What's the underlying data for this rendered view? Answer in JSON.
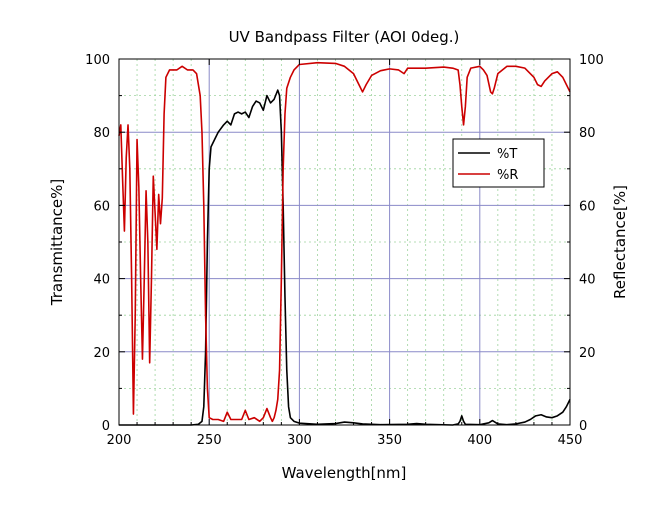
{
  "chart_data": {
    "type": "line",
    "title": "UV Bandpass Filter (AOI 0deg.)",
    "xlabel": "Wavelength[nm]",
    "ylabel_left": "Transmittance%]",
    "ylabel_right": "Reflectance[%]",
    "xlim": [
      200,
      450
    ],
    "ylim": [
      0,
      100
    ],
    "x_ticks": [
      200,
      250,
      300,
      350,
      400,
      450
    ],
    "y_ticks": [
      0,
      20,
      40,
      60,
      80,
      100
    ],
    "grid": true,
    "legend_position": "upper-right",
    "series": [
      {
        "name": "%T",
        "color": "#000000",
        "points": [
          [
            200,
            0
          ],
          [
            240,
            0
          ],
          [
            244,
            0.2
          ],
          [
            246,
            1
          ],
          [
            247,
            5
          ],
          [
            248,
            20
          ],
          [
            249,
            50
          ],
          [
            250,
            70
          ],
          [
            251,
            76
          ],
          [
            253,
            78
          ],
          [
            255,
            80
          ],
          [
            258,
            82
          ],
          [
            260,
            83
          ],
          [
            262,
            82
          ],
          [
            264,
            85
          ],
          [
            266,
            85.5
          ],
          [
            268,
            85
          ],
          [
            270,
            85.5
          ],
          [
            272,
            84
          ],
          [
            274,
            87
          ],
          [
            276,
            88.5
          ],
          [
            278,
            88
          ],
          [
            280,
            86
          ],
          [
            282,
            90
          ],
          [
            284,
            88
          ],
          [
            286,
            89
          ],
          [
            288,
            91.5
          ],
          [
            289,
            90
          ],
          [
            290,
            80
          ],
          [
            291,
            60
          ],
          [
            292,
            35
          ],
          [
            293,
            15
          ],
          [
            294,
            5
          ],
          [
            295,
            2
          ],
          [
            297,
            1
          ],
          [
            300,
            0.5
          ],
          [
            310,
            0.2
          ],
          [
            320,
            0.4
          ],
          [
            325,
            0.8
          ],
          [
            330,
            0.6
          ],
          [
            335,
            0.3
          ],
          [
            345,
            0.1
          ],
          [
            360,
            0.2
          ],
          [
            365,
            0.4
          ],
          [
            370,
            0.2
          ],
          [
            385,
            0
          ],
          [
            388,
            0.3
          ],
          [
            389,
            1
          ],
          [
            390,
            2.5
          ],
          [
            391,
            1
          ],
          [
            392,
            0.2
          ],
          [
            400,
            0.1
          ],
          [
            405,
            0.6
          ],
          [
            407,
            1.2
          ],
          [
            410,
            0.3
          ],
          [
            415,
            0.1
          ],
          [
            420,
            0.3
          ],
          [
            425,
            0.8
          ],
          [
            428,
            1.5
          ],
          [
            431,
            2.5
          ],
          [
            434,
            2.8
          ],
          [
            437,
            2.2
          ],
          [
            440,
            2
          ],
          [
            443,
            2.5
          ],
          [
            446,
            3.5
          ],
          [
            448,
            5
          ],
          [
            450,
            7
          ]
        ]
      },
      {
        "name": "%R",
        "color": "#cc0000",
        "points": [
          [
            200,
            79
          ],
          [
            201,
            82
          ],
          [
            202,
            67
          ],
          [
            203,
            53
          ],
          [
            204,
            73
          ],
          [
            205,
            82
          ],
          [
            206,
            70
          ],
          [
            207,
            40
          ],
          [
            208,
            3
          ],
          [
            209,
            30
          ],
          [
            210,
            78
          ],
          [
            211,
            65
          ],
          [
            212,
            40
          ],
          [
            213,
            18
          ],
          [
            214,
            40
          ],
          [
            215,
            64
          ],
          [
            216,
            50
          ],
          [
            217,
            17
          ],
          [
            218,
            40
          ],
          [
            219,
            68
          ],
          [
            220,
            58
          ],
          [
            221,
            48
          ],
          [
            222,
            63
          ],
          [
            223,
            55
          ],
          [
            224,
            62
          ],
          [
            225,
            85
          ],
          [
            226,
            95
          ],
          [
            228,
            97
          ],
          [
            232,
            97
          ],
          [
            235,
            98
          ],
          [
            238,
            97
          ],
          [
            241,
            97
          ],
          [
            243,
            96
          ],
          [
            245,
            90
          ],
          [
            246,
            80
          ],
          [
            247,
            60
          ],
          [
            248,
            30
          ],
          [
            249,
            10
          ],
          [
            250,
            2
          ],
          [
            252,
            1.5
          ],
          [
            255,
            1.5
          ],
          [
            258,
            1
          ],
          [
            260,
            3.5
          ],
          [
            262,
            1.5
          ],
          [
            265,
            1.5
          ],
          [
            268,
            1.5
          ],
          [
            270,
            4
          ],
          [
            272,
            1.5
          ],
          [
            275,
            2
          ],
          [
            278,
            1
          ],
          [
            280,
            2
          ],
          [
            282,
            4.5
          ],
          [
            284,
            2
          ],
          [
            285,
            1
          ],
          [
            286,
            2
          ],
          [
            287,
            4
          ],
          [
            288,
            7
          ],
          [
            289,
            15
          ],
          [
            290,
            40
          ],
          [
            291,
            70
          ],
          [
            292,
            85
          ],
          [
            293,
            92
          ],
          [
            295,
            95
          ],
          [
            297,
            97
          ],
          [
            300,
            98.5
          ],
          [
            310,
            99
          ],
          [
            320,
            98.8
          ],
          [
            325,
            98
          ],
          [
            330,
            96
          ],
          [
            333,
            93
          ],
          [
            335,
            91
          ],
          [
            337,
            93
          ],
          [
            340,
            95.5
          ],
          [
            345,
            96.8
          ],
          [
            350,
            97.3
          ],
          [
            355,
            97
          ],
          [
            358,
            96
          ],
          [
            360,
            97.5
          ],
          [
            370,
            97.5
          ],
          [
            380,
            97.8
          ],
          [
            385,
            97.5
          ],
          [
            388,
            97
          ],
          [
            389,
            93
          ],
          [
            390,
            87
          ],
          [
            391,
            82
          ],
          [
            392,
            87
          ],
          [
            393,
            95
          ],
          [
            395,
            97.5
          ],
          [
            400,
            98
          ],
          [
            402,
            97
          ],
          [
            404,
            95.5
          ],
          [
            406,
            91
          ],
          [
            407,
            90.5
          ],
          [
            408,
            92
          ],
          [
            410,
            96
          ],
          [
            415,
            98
          ],
          [
            420,
            98
          ],
          [
            425,
            97.5
          ],
          [
            430,
            95
          ],
          [
            432,
            93
          ],
          [
            434,
            92.5
          ],
          [
            436,
            94
          ],
          [
            440,
            96
          ],
          [
            443,
            96.5
          ],
          [
            446,
            95
          ],
          [
            448,
            93
          ],
          [
            450,
            91
          ]
        ]
      }
    ]
  }
}
